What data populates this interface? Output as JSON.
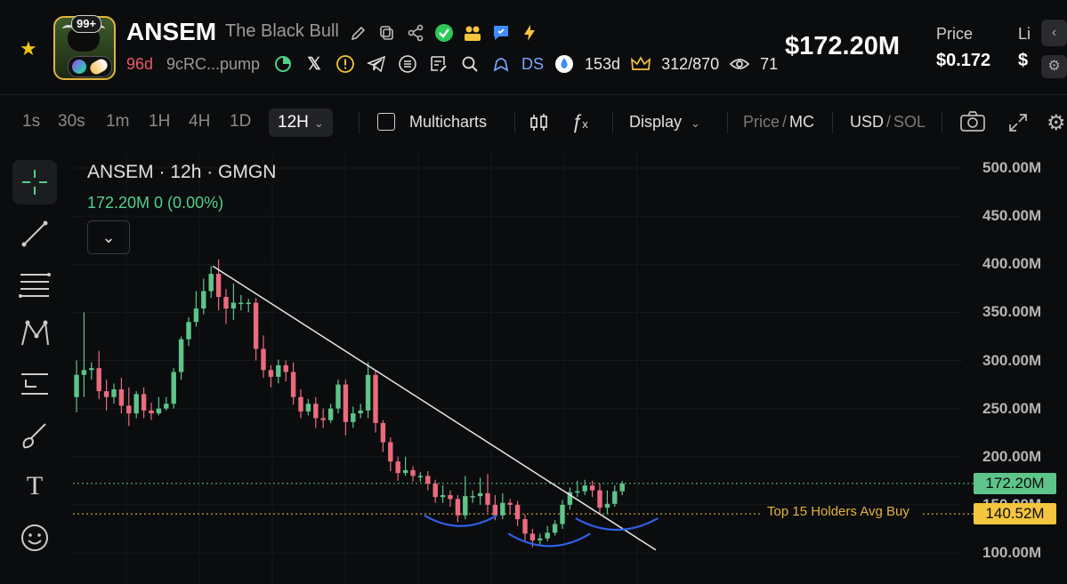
{
  "header": {
    "badge": "99+",
    "token_name": "ANSEM",
    "token_subtitle": "The Black Bull",
    "age": "96d",
    "address": "9cRC...pump",
    "ds_label": "DS",
    "ds_age": "153d",
    "holders_ratio": "312/870",
    "views": "71",
    "market_cap": "$172.20M",
    "price_label": "Price",
    "price_value": "$0.172",
    "liq_label": "Li",
    "liq_value": "$"
  },
  "toolbar": {
    "timeframes": [
      "1s",
      "30s",
      "1m",
      "1H",
      "4H",
      "1D"
    ],
    "active_timeframe": "12H",
    "multicharts": "Multicharts",
    "display": "Display",
    "price_label": "Price",
    "slash": "/",
    "mc_label": "MC",
    "usd_label": "USD",
    "sol_label": "SOL"
  },
  "legend": {
    "title": "ANSEM · 12h · GMGN",
    "values": "172.20M  0 (0.00%)"
  },
  "colors": {
    "up": "#5ec58a",
    "down": "#ea6b7d",
    "accent_gold": "#f5c53e",
    "drawing_blue": "#2f5fe6"
  },
  "chart_data": {
    "type": "candlestick",
    "interval": "12h",
    "y_axis_labels": [
      "500.00M",
      "450.00M",
      "400.00M",
      "350.00M",
      "300.00M",
      "250.00M",
      "200.00M",
      "150.00M",
      "100.00M"
    ],
    "ylim": [
      95,
      510
    ],
    "current_price": 172.2,
    "current_label": "172.20M",
    "holders_avg": 140.52,
    "holders_avg_label": "140.52M",
    "holders_avg_text": "Top 15 Holders Avg Buy",
    "candles": [
      [
        262,
        285,
        246,
        300
      ],
      [
        285,
        290,
        262,
        350
      ],
      [
        290,
        292,
        280,
        298
      ],
      [
        292,
        268,
        260,
        310
      ],
      [
        268,
        262,
        248,
        280
      ],
      [
        262,
        270,
        255,
        276
      ],
      [
        270,
        253,
        245,
        282
      ],
      [
        253,
        245,
        232,
        272
      ],
      [
        245,
        265,
        240,
        268
      ],
      [
        265,
        248,
        240,
        272
      ],
      [
        248,
        245,
        238,
        256
      ],
      [
        245,
        250,
        243,
        262
      ],
      [
        250,
        255,
        248,
        262
      ],
      [
        255,
        288,
        250,
        292
      ],
      [
        288,
        322,
        280,
        325
      ],
      [
        322,
        340,
        315,
        345
      ],
      [
        340,
        354,
        335,
        372
      ],
      [
        354,
        372,
        348,
        385
      ],
      [
        372,
        390,
        365,
        398
      ],
      [
        390,
        366,
        352,
        405
      ],
      [
        366,
        354,
        338,
        374
      ],
      [
        354,
        360,
        342,
        380
      ],
      [
        360,
        360,
        352,
        368
      ],
      [
        360,
        360,
        350,
        364
      ],
      [
        360,
        312,
        300,
        365
      ],
      [
        312,
        290,
        282,
        326
      ],
      [
        290,
        283,
        272,
        295
      ],
      [
        283,
        295,
        276,
        301
      ],
      [
        295,
        288,
        278,
        300
      ],
      [
        288,
        262,
        254,
        298
      ],
      [
        262,
        247,
        240,
        270
      ],
      [
        247,
        255,
        243,
        260
      ],
      [
        255,
        240,
        230,
        262
      ],
      [
        240,
        238,
        230,
        250
      ],
      [
        238,
        250,
        235,
        255
      ],
      [
        250,
        275,
        245,
        280
      ],
      [
        275,
        236,
        222,
        280
      ],
      [
        236,
        245,
        230,
        252
      ],
      [
        245,
        248,
        240,
        255
      ],
      [
        248,
        285,
        240,
        298
      ],
      [
        285,
        235,
        225,
        290
      ],
      [
        235,
        215,
        205,
        238
      ],
      [
        215,
        195,
        185,
        220
      ],
      [
        195,
        183,
        175,
        200
      ],
      [
        183,
        186,
        180,
        200
      ],
      [
        186,
        180,
        174,
        190
      ],
      [
        180,
        180,
        174,
        184
      ],
      [
        180,
        172,
        165,
        185
      ],
      [
        172,
        158,
        152,
        176
      ],
      [
        158,
        160,
        152,
        170
      ],
      [
        160,
        156,
        148,
        165
      ],
      [
        156,
        139,
        132,
        160
      ],
      [
        139,
        159,
        135,
        180
      ],
      [
        159,
        159,
        152,
        165
      ],
      [
        159,
        162,
        150,
        178
      ],
      [
        162,
        150,
        142,
        182
      ],
      [
        150,
        139,
        134,
        160
      ],
      [
        139,
        152,
        135,
        162
      ],
      [
        152,
        150,
        140,
        156
      ],
      [
        150,
        135,
        128,
        154
      ],
      [
        135,
        120,
        112,
        140
      ],
      [
        120,
        113,
        106,
        125
      ],
      [
        113,
        115,
        108,
        120
      ],
      [
        115,
        121,
        112,
        128
      ],
      [
        121,
        130,
        118,
        134
      ],
      [
        130,
        150,
        125,
        155
      ],
      [
        150,
        163,
        145,
        168
      ],
      [
        163,
        164,
        158,
        175
      ],
      [
        164,
        170,
        160,
        176
      ],
      [
        170,
        165,
        158,
        175
      ],
      [
        165,
        147,
        140,
        172
      ],
      [
        147,
        151,
        140,
        165
      ],
      [
        151,
        164,
        148,
        170
      ],
      [
        164,
        172,
        160,
        175
      ]
    ]
  }
}
